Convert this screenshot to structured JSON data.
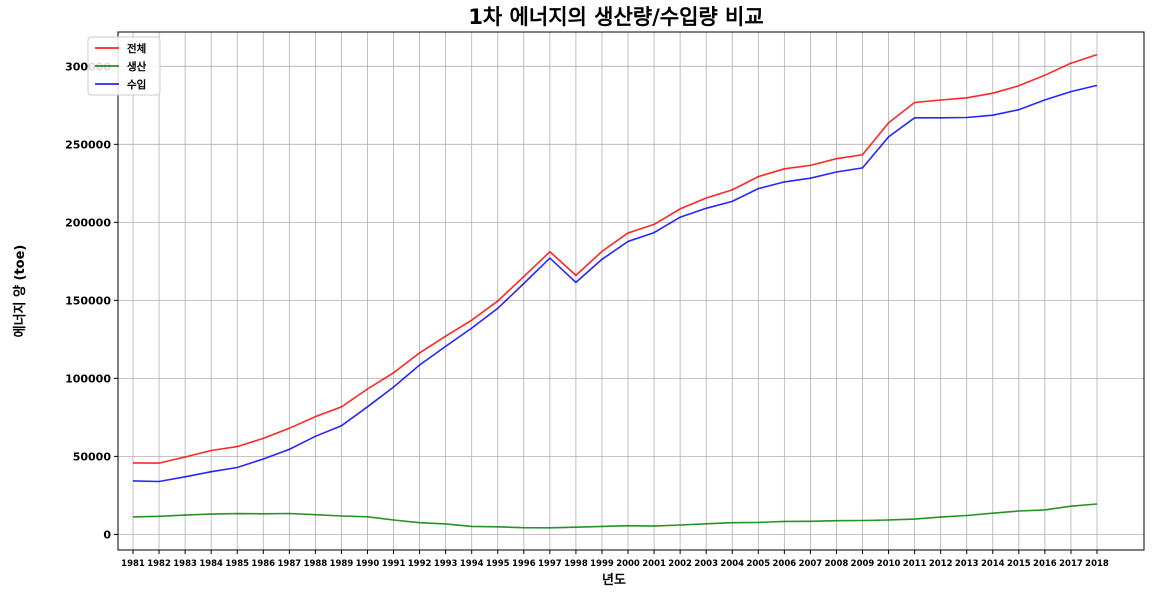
{
  "chart_data": {
    "type": "line",
    "title": "1차 에너지의 생산량/수입량 비교",
    "xlabel": "년도",
    "ylabel": "에너지 양 (toe)",
    "x": [
      "1981",
      "1982",
      "1983",
      "1984",
      "1985",
      "1986",
      "1987",
      "1988",
      "1989",
      "1990",
      "1991",
      "1992",
      "1993",
      "1994",
      "1995",
      "1996",
      "1997",
      "1998",
      "1999",
      "2000",
      "2001",
      "2002",
      "2003",
      "2004",
      "2005",
      "2006",
      "2007",
      "2008",
      "2009",
      "2010",
      "2011",
      "2012",
      "2013",
      "2014",
      "2015",
      "2016",
      "2017",
      "2018"
    ],
    "ylim": [
      -10000,
      322000
    ],
    "yticks": [
      0,
      50000,
      100000,
      150000,
      200000,
      250000,
      300000
    ],
    "grid": true,
    "legend_position": "top-left",
    "series": [
      {
        "name": "전체",
        "color": "#ff0000",
        "values": [
          45800,
          45700,
          49600,
          53800,
          56300,
          61500,
          68000,
          75500,
          81700,
          93200,
          103600,
          116300,
          127000,
          137300,
          149600,
          165200,
          181200,
          166000,
          181400,
          193200,
          198700,
          208600,
          215600,
          220800,
          229300,
          234300,
          236500,
          240800,
          243300,
          263800,
          276800,
          278400,
          279800,
          282800,
          287500,
          294300,
          302000,
          307500
        ]
      },
      {
        "name": "생산",
        "color": "#008000",
        "values": [
          11200,
          11600,
          12400,
          13000,
          13300,
          13200,
          13400,
          12600,
          11800,
          11300,
          9200,
          7500,
          6700,
          5100,
          4900,
          4300,
          4200,
          4600,
          5100,
          5600,
          5300,
          6000,
          6800,
          7500,
          7700,
          8300,
          8400,
          8800,
          8900,
          9200,
          9800,
          11100,
          12100,
          13600,
          15000,
          15700,
          18100,
          19500
        ]
      },
      {
        "name": "수입",
        "color": "#0000ff",
        "values": [
          34300,
          33900,
          36900,
          40200,
          42900,
          48300,
          54500,
          62900,
          69600,
          81800,
          94400,
          108600,
          120500,
          132200,
          144900,
          160800,
          177100,
          161500,
          176300,
          187700,
          193400,
          203300,
          209000,
          213400,
          221600,
          225900,
          228300,
          232300,
          234900,
          254800,
          267000,
          267000,
          267200,
          268700,
          272200,
          278500,
          283800,
          287800
        ]
      }
    ]
  }
}
